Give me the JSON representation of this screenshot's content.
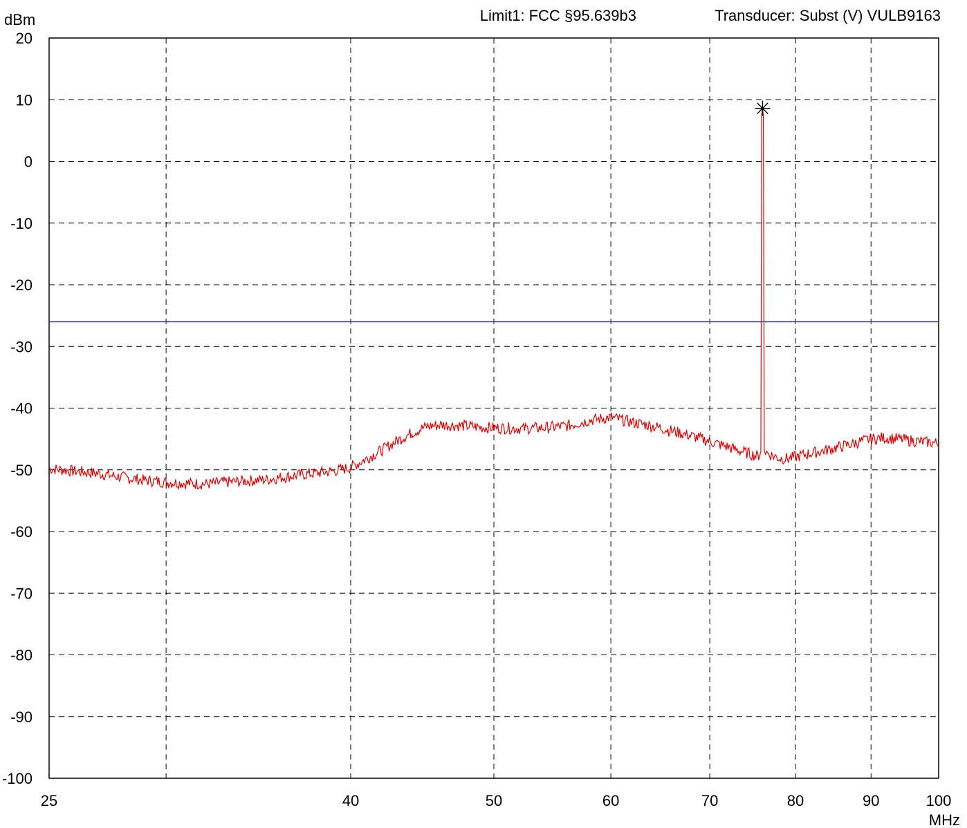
{
  "header": {
    "unit_top": "dBm",
    "limit_text": "Limit1: FCC §95.639b3",
    "transducer_text": "Transducer: Subst (V) VULB9163"
  },
  "chart_data": {
    "type": "line",
    "title": "",
    "ylabel": "dBm",
    "xlabel": "MHz",
    "x_scale": "log",
    "xlim": [
      25,
      100
    ],
    "ylim": [
      -100,
      20
    ],
    "y_ticks": [
      20,
      10,
      0,
      -10,
      -20,
      -30,
      -40,
      -50,
      -60,
      -70,
      -80,
      -90,
      -100
    ],
    "x_tick_labels": [
      {
        "value": 25,
        "label": "25"
      },
      {
        "value": 40,
        "label": "40"
      },
      {
        "value": 50,
        "label": "50"
      },
      {
        "value": 60,
        "label": "60"
      },
      {
        "value": 70,
        "label": "70"
      },
      {
        "value": 80,
        "label": "80"
      },
      {
        "value": 90,
        "label": "90"
      },
      {
        "value": 100,
        "label": "100"
      }
    ],
    "x_grid": [
      30,
      40,
      50,
      60,
      70,
      80,
      90
    ],
    "grid": true,
    "limit_line": {
      "value": -26,
      "color": "#3333dd"
    },
    "marker": {
      "x": 76.0,
      "y": 8.6
    },
    "series": [
      {
        "color": "#e00000",
        "points": [
          [
            25,
            -49.8
          ],
          [
            26,
            -50.2
          ],
          [
            27,
            -50.6
          ],
          [
            28,
            -51.2
          ],
          [
            29,
            -51.7
          ],
          [
            30,
            -52.0
          ],
          [
            31,
            -52.2
          ],
          [
            32,
            -52.3
          ],
          [
            33,
            -52.0
          ],
          [
            34,
            -51.8
          ],
          [
            35,
            -51.6
          ],
          [
            36,
            -51.2
          ],
          [
            37,
            -50.8
          ],
          [
            38,
            -50.5
          ],
          [
            39,
            -50.2
          ],
          [
            40,
            -49.6
          ],
          [
            41,
            -48.2
          ],
          [
            42,
            -46.8
          ],
          [
            43,
            -45.3
          ],
          [
            44,
            -44.0
          ],
          [
            45,
            -43.0
          ],
          [
            46,
            -42.7
          ],
          [
            47,
            -42.8
          ],
          [
            48,
            -42.9
          ],
          [
            49,
            -43.1
          ],
          [
            50,
            -43.2
          ],
          [
            52,
            -43.3
          ],
          [
            54,
            -43.2
          ],
          [
            56,
            -42.9
          ],
          [
            58,
            -42.0
          ],
          [
            60,
            -41.5
          ],
          [
            62,
            -42.3
          ],
          [
            64,
            -42.9
          ],
          [
            66,
            -43.7
          ],
          [
            68,
            -44.5
          ],
          [
            70,
            -45.4
          ],
          [
            72,
            -46.3
          ],
          [
            74,
            -47.2
          ],
          [
            75.5,
            -47.8
          ],
          [
            75.8,
            -47.0
          ],
          [
            75.9,
            7.5
          ],
          [
            76.0,
            8.6
          ],
          [
            76.1,
            7.5
          ],
          [
            76.2,
            -47.0
          ],
          [
            77,
            -47.6
          ],
          [
            78,
            -48.1
          ],
          [
            79,
            -48.2
          ],
          [
            80,
            -47.9
          ],
          [
            82,
            -47.3
          ],
          [
            84,
            -46.8
          ],
          [
            86,
            -46.2
          ],
          [
            88,
            -45.6
          ],
          [
            90,
            -45.0
          ],
          [
            92,
            -44.8
          ],
          [
            94,
            -45.0
          ],
          [
            96,
            -45.3
          ],
          [
            98,
            -45.5
          ],
          [
            100,
            -45.7
          ]
        ]
      }
    ]
  }
}
